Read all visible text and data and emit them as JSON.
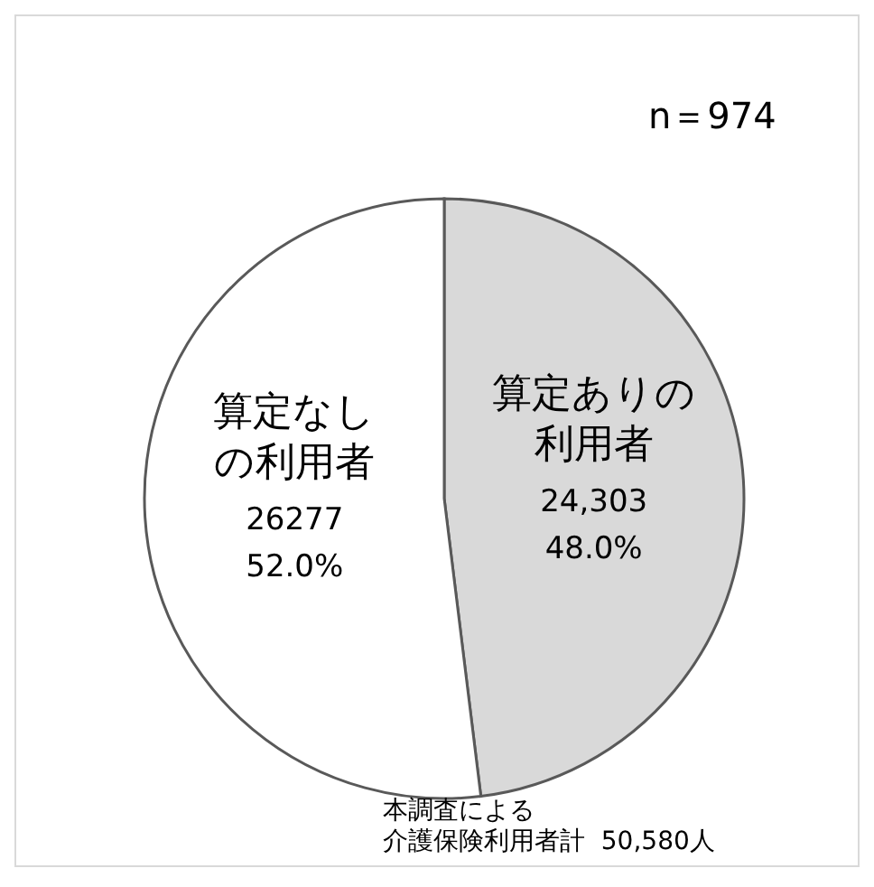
{
  "chart_data": {
    "type": "pie",
    "categories": [
      "算定ありの利用者",
      "算定なしの利用者"
    ],
    "values": [
      24303,
      26277
    ],
    "colors": [
      "#d9d9d9",
      "#ffffff"
    ],
    "value_labels": [
      "24,303\n48.0%",
      "26277\n52.0%"
    ],
    "legend": false,
    "annotations": [
      "n＝974",
      "本調査による介護保険利用者計  50,580人"
    ]
  }
}
